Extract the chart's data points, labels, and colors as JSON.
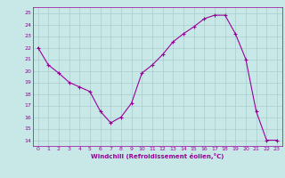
{
  "x": [
    0,
    1,
    2,
    3,
    4,
    5,
    6,
    7,
    8,
    9,
    10,
    11,
    12,
    13,
    14,
    15,
    16,
    17,
    18,
    19,
    20,
    21,
    22,
    23
  ],
  "y": [
    22,
    20.5,
    19.8,
    19.0,
    18.6,
    18.2,
    16.5,
    15.5,
    16.0,
    17.2,
    19.8,
    20.5,
    21.4,
    22.5,
    23.2,
    23.8,
    24.5,
    24.8,
    24.8,
    23.2,
    21.0,
    16.5,
    14.0,
    14.0
  ],
  "line_color": "#990099",
  "marker": "+",
  "bg_color": "#c8e8e8",
  "grid_color": "#aacccc",
  "xlabel": "Windchill (Refroidissement éolien,°C)",
  "xlabel_color": "#990099",
  "ylabel_ticks": [
    14,
    15,
    16,
    17,
    18,
    19,
    20,
    21,
    22,
    23,
    24,
    25
  ],
  "xlim": [
    -0.5,
    23.5
  ],
  "ylim": [
    13.5,
    25.5
  ],
  "xticks": [
    0,
    1,
    2,
    3,
    4,
    5,
    6,
    7,
    8,
    9,
    10,
    11,
    12,
    13,
    14,
    15,
    16,
    17,
    18,
    19,
    20,
    21,
    22,
    23
  ]
}
